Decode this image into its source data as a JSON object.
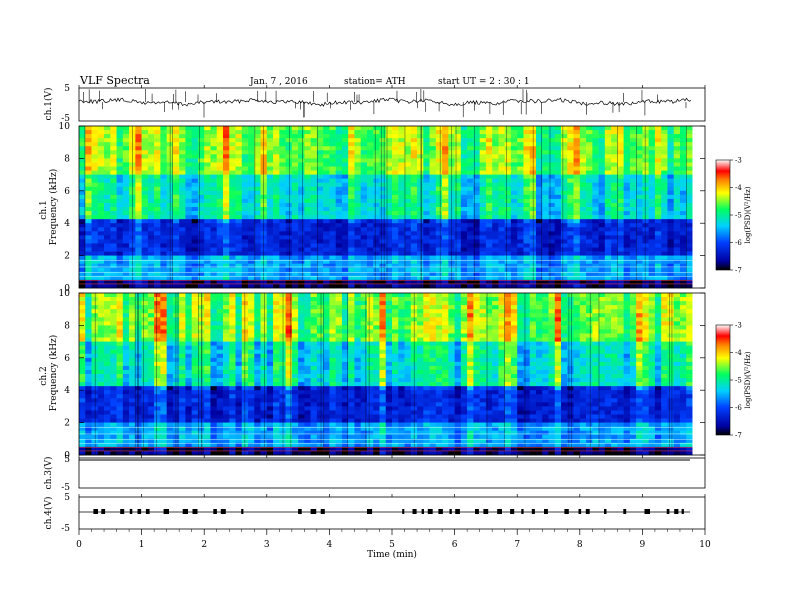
{
  "header": {
    "title": "VLF  Spectra",
    "date": "Jan.  7  , 2016",
    "station": "station= ATH",
    "start": "start  UT  =   2  : 30 : 1"
  },
  "chart_data": [
    {
      "type": "line",
      "title": "VLF  Spectra",
      "ylabel": "ch.1(V)",
      "ylim": [
        -5,
        5
      ],
      "yticks": [
        "5",
        "-5"
      ],
      "xlim": [
        0,
        10
      ],
      "description_of_series": "ch.1 waveform hovering near 0 V",
      "series": [
        {
          "x": [
            0,
            1,
            2,
            3,
            4,
            5,
            6,
            7,
            8,
            9,
            9.8
          ],
          "values": [
            0.2,
            0.4,
            0.1,
            0.3,
            0.6,
            0.1,
            0.2,
            0.3,
            0.0,
            0.1,
            0.3
          ]
        }
      ]
    },
    {
      "type": "heatmap",
      "ylabel": "ch.1\nFrequency  (kHz)",
      "ylim": [
        0,
        10
      ],
      "yticks": [
        "10",
        "8",
        "6",
        "4",
        "2",
        "0"
      ],
      "xlim": [
        0,
        9.8
      ],
      "colorbar": {
        "label": "log(PSD)(V²/Hz)",
        "range": [
          -7,
          -3
        ],
        "ticks": [
          "-3",
          "-4",
          "-5",
          "-6",
          "-7"
        ]
      }
    },
    {
      "type": "heatmap",
      "ylabel": "ch.2\nFrequency  (kHz)",
      "ylim": [
        0,
        10
      ],
      "yticks": [
        "10",
        "8",
        "6",
        "4",
        "2",
        "0"
      ],
      "xlim": [
        0,
        9.8
      ],
      "colorbar": {
        "label": "log(PSD)(V²/Hz)",
        "range": [
          -7,
          -3
        ],
        "ticks": [
          "-3",
          "-4",
          "-5",
          "-6",
          "-7"
        ]
      }
    },
    {
      "type": "line",
      "ylabel": "ch.3(V)",
      "ylim": [
        -5,
        5
      ],
      "yticks": [
        "5",
        "-5"
      ],
      "series": [
        {
          "x": [
            0,
            9.8
          ],
          "values": [
            -5,
            -5
          ]
        }
      ]
    },
    {
      "type": "line",
      "ylabel": "ch.4(V)",
      "ylim": [
        -5,
        5
      ],
      "yticks": [
        "5",
        "-5"
      ],
      "xlabel": "Time  (min)",
      "xticks": [
        "0",
        "1",
        "2",
        "3",
        "4",
        "5",
        "6",
        "7",
        "8",
        "9",
        "10"
      ],
      "series": [
        {
          "x": [
            0,
            9.8
          ],
          "values": [
            0,
            0
          ]
        }
      ]
    }
  ]
}
